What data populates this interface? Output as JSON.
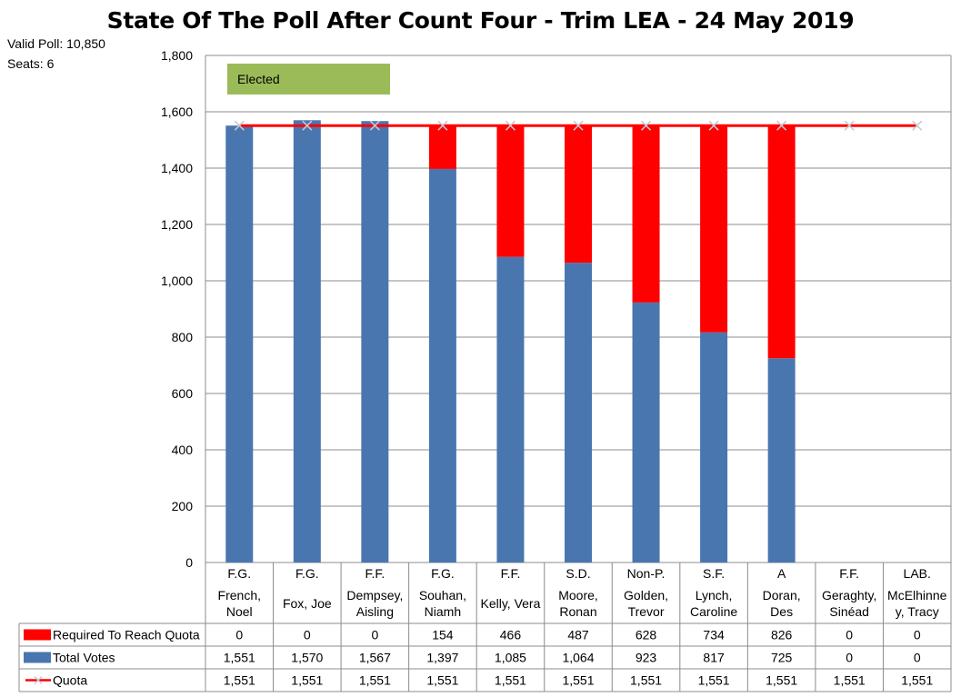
{
  "title": "State Of The Poll After Count Four - Trim LEA - 24 May 2019",
  "valid_poll": "Valid Poll: 10,850",
  "seats": "Seats: 6",
  "elected_label": "Elected",
  "colors": {
    "required": "#ff0000",
    "total": "#4a76b0",
    "quota": "#ff0000",
    "elected": "#9bbb59"
  },
  "chart_data": {
    "type": "bar",
    "stacked": true,
    "ylim": [
      0,
      1800
    ],
    "yticks": [
      "0",
      "200",
      "400",
      "600",
      "800",
      "1,000",
      "1,200",
      "1,400",
      "1,600",
      "1,800"
    ],
    "categories": [
      [
        "F.G.",
        "French,",
        "Noel"
      ],
      [
        "F.G.",
        "Fox, Joe"
      ],
      [
        "F.F.",
        "Dempsey,",
        "Aisling"
      ],
      [
        "F.G.",
        "Souhan,",
        "Niamh"
      ],
      [
        "F.F.",
        "Kelly, Vera"
      ],
      [
        "S.D.",
        "Moore,",
        "Ronan"
      ],
      [
        "Non-P.",
        "Golden,",
        "Trevor"
      ],
      [
        "S.F.",
        "Lynch,",
        "Caroline"
      ],
      [
        "A",
        "Doran,",
        "Des"
      ],
      [
        "F.F.",
        "Geraghty,",
        "Sinéad"
      ],
      [
        "LAB.",
        "McElhinne",
        "y, Tracy"
      ]
    ],
    "series": [
      {
        "name": "Required To Reach Quota",
        "type": "bar",
        "values": [
          0,
          0,
          0,
          154,
          466,
          487,
          628,
          734,
          826,
          0,
          0
        ],
        "labels": [
          "0",
          "0",
          "0",
          "154",
          "466",
          "487",
          "628",
          "734",
          "826",
          "0",
          "0"
        ]
      },
      {
        "name": "Total Votes",
        "type": "bar",
        "values": [
          1551,
          1570,
          1567,
          1397,
          1085,
          1064,
          923,
          817,
          725,
          0,
          0
        ],
        "labels": [
          "1,551",
          "1,570",
          "1,567",
          "1,397",
          "1,085",
          "1,064",
          "923",
          "817",
          "725",
          "0",
          "0"
        ]
      },
      {
        "name": "Quota",
        "type": "line",
        "values": [
          1551,
          1551,
          1551,
          1551,
          1551,
          1551,
          1551,
          1551,
          1551,
          1551,
          1551
        ],
        "labels": [
          "1,551",
          "1,551",
          "1,551",
          "1,551",
          "1,551",
          "1,551",
          "1,551",
          "1,551",
          "1,551",
          "1,551",
          "1,551"
        ]
      }
    ],
    "grid": true,
    "legend": "data-table"
  }
}
